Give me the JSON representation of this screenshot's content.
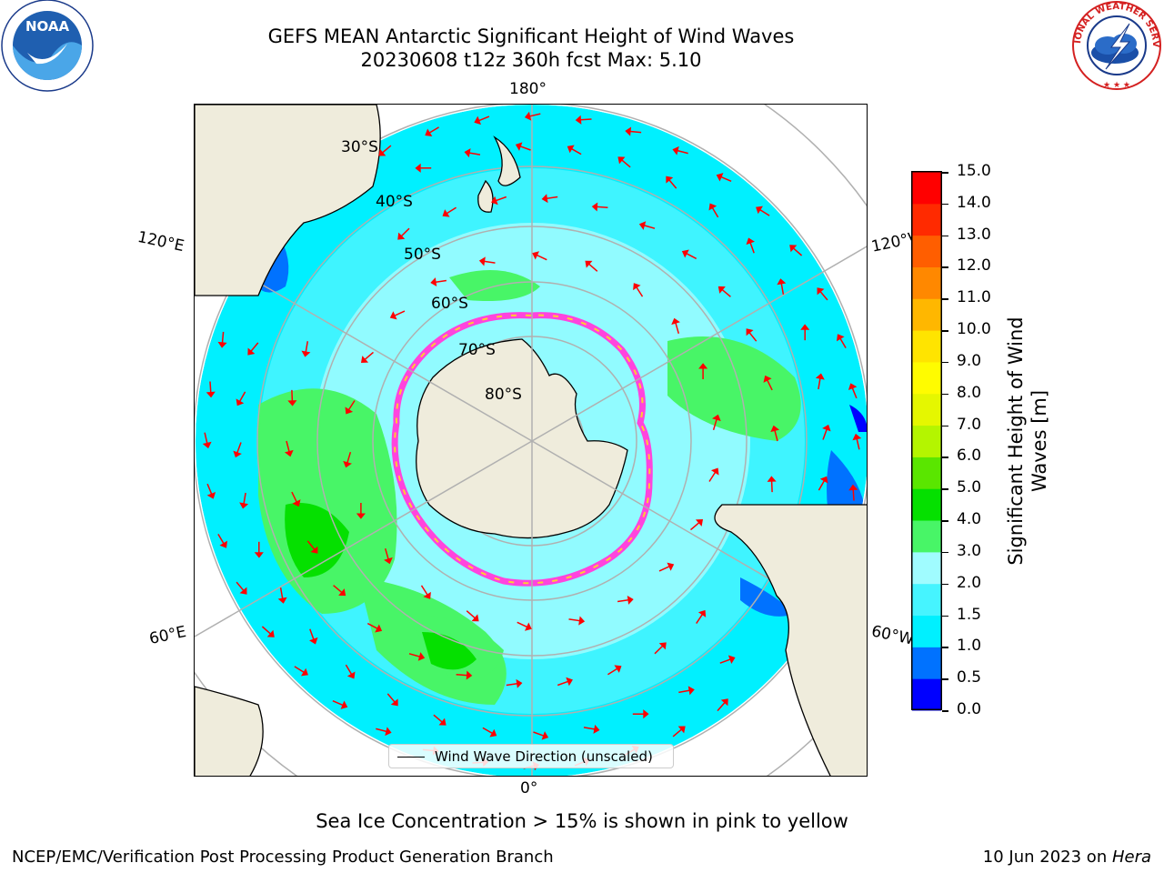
{
  "title": {
    "line1": "GEFS MEAN Antarctic Significant Height of Wind Waves",
    "line2": "20230608 t12z 360h fcst   Max: 5.10"
  },
  "logos": {
    "left": {
      "text": "NOAA",
      "ring_text": "NATIONAL OCEANIC AND ATMOSPHERIC ADMINISTRATION · U.S. DEPARTMENT OF COMMERCE"
    },
    "right": {
      "ring_text": "NATIONAL WEATHER SERVICE"
    }
  },
  "map": {
    "projection": "south-polar-stereographic",
    "longitude_labels": {
      "top": "180°",
      "bottom": "0°",
      "left_upper": "120°E",
      "left_lower": "60°E",
      "right_upper": "120°W",
      "right_lower": "60°W"
    },
    "latitude_labels": [
      "30°S",
      "40°S",
      "50°S",
      "60°S",
      "70°S",
      "80°S"
    ],
    "colors": {
      "land": "#efecdc",
      "ice_free_antarctic": "#ffffff",
      "gridline": "#b0b0b0",
      "arrow": "#ff0000",
      "sea_ice_pink": "#ff44dd",
      "sea_ice_yellow": "#ffcc33"
    }
  },
  "legend": {
    "label": "Wind Wave Direction (unscaled)"
  },
  "colorbar": {
    "title_line1": "Significant Height of Wind",
    "title_line2": "Waves [m]",
    "ticks": [
      "0.0",
      "0.5",
      "1.0",
      "1.5",
      "2.0",
      "3.0",
      "4.0",
      "5.0",
      "6.0",
      "7.0",
      "8.0",
      "9.0",
      "10.0",
      "11.0",
      "12.0",
      "13.0",
      "14.0",
      "15.0"
    ],
    "colors": [
      "#0000ff",
      "#0072ff",
      "#00f0ff",
      "#46f4ff",
      "#a0fcff",
      "#48f567",
      "#05e000",
      "#5ae600",
      "#b4f500",
      "#e5f700",
      "#fffc00",
      "#ffe400",
      "#ffb700",
      "#ff8800",
      "#ff5e00",
      "#ff2a00",
      "#ff0000"
    ]
  },
  "note": "Sea Ice Concentration > 15% is shown in pink to yellow",
  "footer": {
    "left": "NCEP/EMC/Verification Post Processing Product Generation Branch",
    "right_prefix": "10 Jun 2023 on ",
    "right_machine": "Hera"
  }
}
